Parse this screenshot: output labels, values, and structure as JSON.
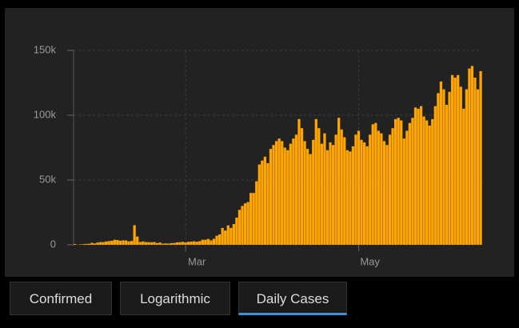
{
  "chart_data": {
    "type": "bar",
    "color": "#ffa500",
    "grid": true,
    "categories": [
      null,
      null,
      null,
      null,
      null,
      null,
      null,
      null,
      null,
      null,
      null,
      null,
      null,
      null,
      null,
      null,
      null,
      null,
      null,
      null,
      null,
      null,
      null,
      null,
      null,
      null,
      null,
      null,
      null,
      null,
      null,
      null,
      null,
      null,
      null,
      null,
      null,
      null,
      null,
      "Mar",
      null,
      null,
      null,
      null,
      null,
      null,
      null,
      null,
      null,
      null,
      null,
      null,
      null,
      null,
      null,
      null,
      null,
      null,
      null,
      null,
      null,
      null,
      null,
      null,
      null,
      null,
      null,
      null,
      null,
      null,
      null,
      null,
      null,
      null,
      null,
      null,
      null,
      null,
      null,
      null,
      null,
      null,
      null,
      null,
      null,
      null,
      null,
      null,
      null,
      null,
      null,
      null,
      null,
      null,
      null,
      null,
      null,
      null,
      null,
      null,
      "May",
      null,
      null,
      null,
      null,
      null,
      null,
      null,
      null,
      null,
      null,
      null,
      null,
      null,
      null,
      null,
      null,
      null,
      null,
      null,
      null,
      null,
      null,
      null,
      null,
      null,
      null,
      null,
      null,
      null,
      null,
      null,
      null,
      null,
      null,
      null,
      null,
      null,
      null,
      null,
      null,
      null,
      null,
      null
    ],
    "values": [
      580,
      100,
      290,
      490,
      680,
      810,
      1570,
      1010,
      1750,
      2080,
      2100,
      2590,
      2840,
      3100,
      3890,
      3700,
      3160,
      3440,
      3380,
      2650,
      2990,
      15100,
      6400,
      2200,
      2600,
      2100,
      2050,
      1900,
      2200,
      1300,
      1800,
      900,
      1100,
      900,
      1300,
      1400,
      1900,
      2000,
      2300,
      1900,
      2300,
      2500,
      2700,
      2400,
      2800,
      3900,
      3900,
      4500,
      3400,
      4600,
      7000,
      8000,
      13000,
      11000,
      15000,
      13000,
      16000,
      21000,
      27000,
      30000,
      32000,
      33000,
      40000,
      40000,
      49000,
      62000,
      65000,
      68000,
      63000,
      74000,
      77000,
      80000,
      82000,
      80000,
      75000,
      73000,
      78000,
      82000,
      85000,
      97000,
      90000,
      80000,
      74000,
      70000,
      81000,
      97000,
      90000,
      78000,
      86000,
      73000,
      79000,
      77000,
      85000,
      98000,
      89000,
      83000,
      73000,
      72000,
      76000,
      85000,
      88000,
      81000,
      79000,
      76000,
      85000,
      93000,
      94000,
      88000,
      86000,
      80000,
      77000,
      85000,
      90000,
      97000,
      98000,
      96000,
      82000,
      88000,
      94000,
      98000,
      106000,
      105000,
      107000,
      99000,
      96000,
      92000,
      97000,
      107000,
      117000,
      126000,
      120000,
      108000,
      118000,
      131000,
      129000,
      131000,
      122000,
      105000,
      120000,
      136000,
      138000,
      129000,
      120000,
      134000
    ],
    "ylim": [
      0,
      150000
    ],
    "yticks": [
      0,
      {
        "value": 50000,
        "label": "50k"
      },
      {
        "value": 100000,
        "label": "100k"
      },
      {
        "value": 150000,
        "label": "150k"
      }
    ]
  },
  "tabs": [
    "Confirmed",
    "Logarithmic",
    "Daily Cases"
  ]
}
